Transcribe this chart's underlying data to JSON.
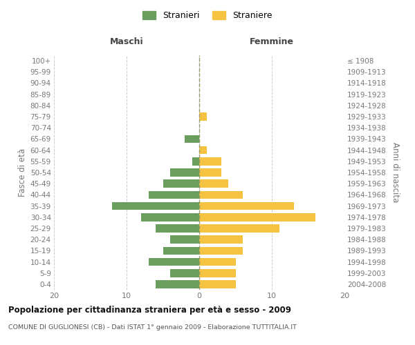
{
  "age_groups": [
    "100+",
    "95-99",
    "90-94",
    "85-89",
    "80-84",
    "75-79",
    "70-74",
    "65-69",
    "60-64",
    "55-59",
    "50-54",
    "45-49",
    "40-44",
    "35-39",
    "30-34",
    "25-29",
    "20-24",
    "15-19",
    "10-14",
    "5-9",
    "0-4"
  ],
  "birth_years": [
    "≤ 1908",
    "1909-1913",
    "1914-1918",
    "1919-1923",
    "1924-1928",
    "1929-1933",
    "1934-1938",
    "1939-1943",
    "1944-1948",
    "1949-1953",
    "1954-1958",
    "1959-1963",
    "1964-1968",
    "1969-1973",
    "1974-1978",
    "1979-1983",
    "1984-1988",
    "1989-1993",
    "1994-1998",
    "1999-2003",
    "2004-2008"
  ],
  "maschi": [
    0,
    0,
    0,
    0,
    0,
    0,
    0,
    2,
    0,
    1,
    4,
    5,
    7,
    12,
    8,
    6,
    4,
    5,
    7,
    4,
    6
  ],
  "femmine": [
    0,
    0,
    0,
    0,
    0,
    1,
    0,
    0,
    1,
    3,
    3,
    4,
    6,
    13,
    16,
    11,
    6,
    6,
    5,
    5,
    5
  ],
  "maschi_color": "#6b9e5e",
  "femmine_color": "#f5c242",
  "background_color": "#ffffff",
  "grid_color": "#cccccc",
  "title": "Popolazione per cittadinanza straniera per età e sesso - 2009",
  "subtitle": "COMUNE DI GUGLIONESI (CB) - Dati ISTAT 1° gennaio 2009 - Elaborazione TUTTITALIA.IT",
  "ylabel_left": "Fasce di età",
  "ylabel_right": "Anni di nascita",
  "header_maschi": "Maschi",
  "header_femmine": "Femmine",
  "legend_maschi": "Stranieri",
  "legend_femmine": "Straniere",
  "xlim": 20,
  "label_color": "#777777",
  "header_color": "#444444",
  "title_color": "#111111",
  "subtitle_color": "#555555",
  "center_line_color": "#999966",
  "grid_line_color": "#cccccc"
}
